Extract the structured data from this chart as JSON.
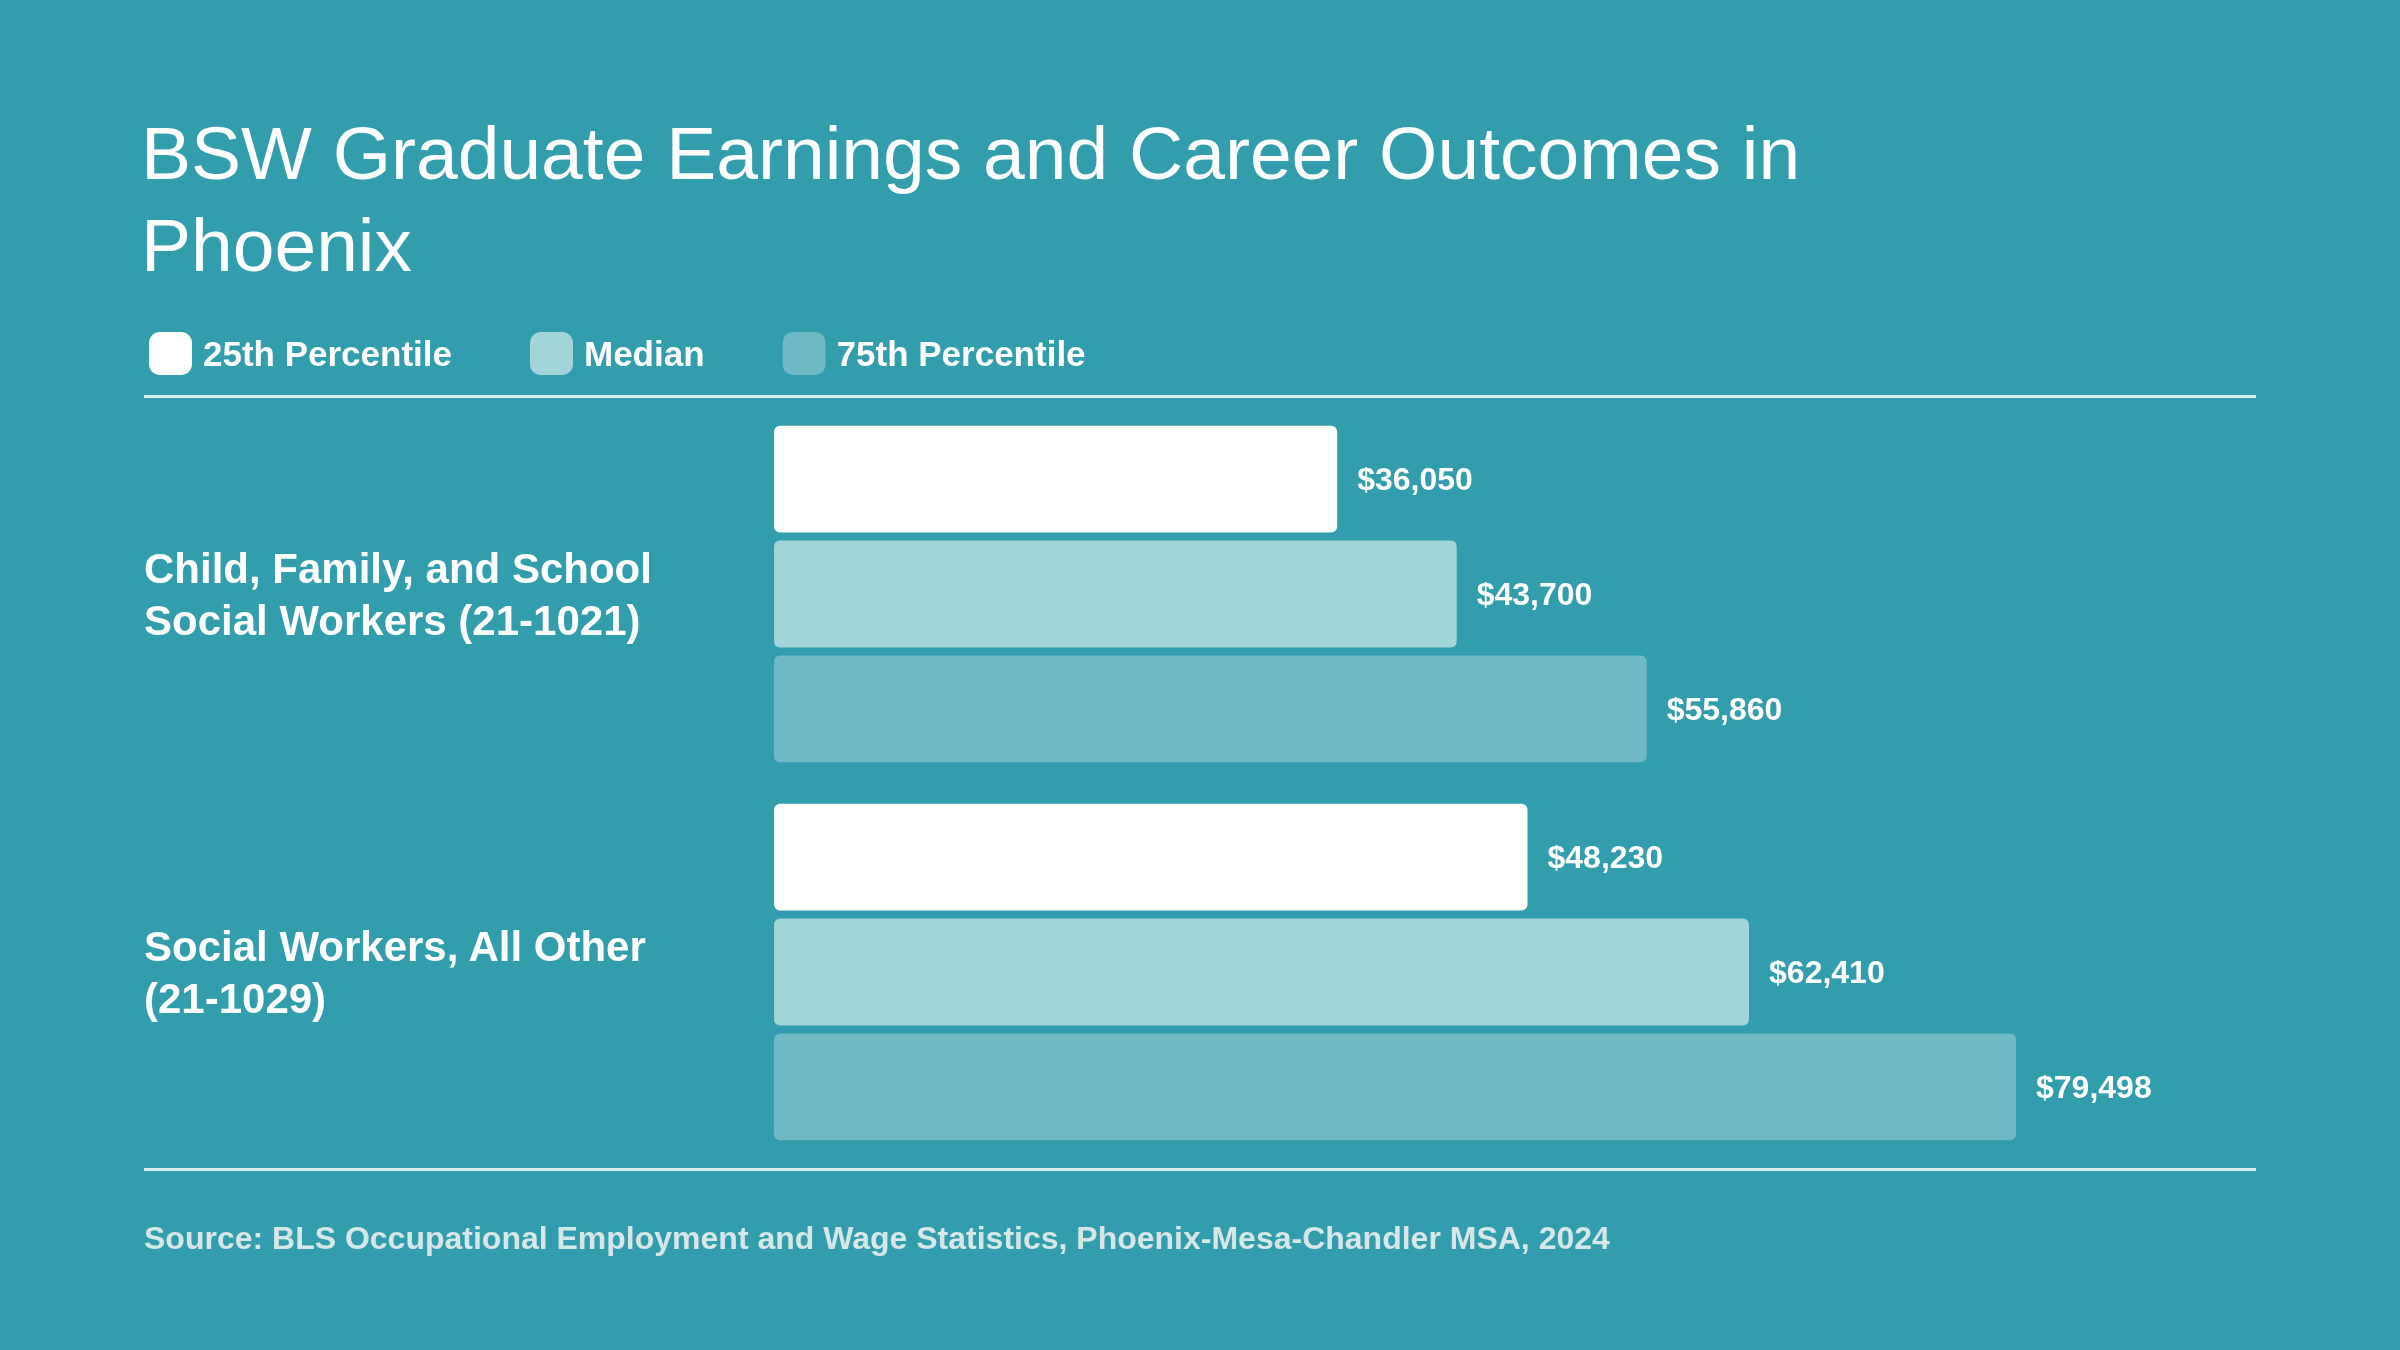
{
  "chart_data": {
    "type": "bar",
    "orientation": "horizontal",
    "title": "BSW Graduate Earnings and Career Outcomes in Phoenix",
    "categories": [
      "Child, Family, and School Social Workers (21-1021)",
      "Social Workers, All Other (21-1029)"
    ],
    "series": [
      {
        "name": "25th Percentile",
        "color": "#ffffff",
        "values": [
          36050,
          48230
        ],
        "value_labels": [
          "$36,050",
          "$48,230"
        ]
      },
      {
        "name": "Median",
        "color": "#a3d4da",
        "values": [
          43700,
          62410
        ],
        "value_labels": [
          "$43,700",
          "$62,410"
        ]
      },
      {
        "name": "75th Percentile",
        "color": "#6fb9c5",
        "values": [
          55860,
          79498
        ],
        "value_labels": [
          "$55,860",
          "$79,498"
        ]
      }
    ],
    "legend": "top left",
    "annotations": [
      "Source: BLS Occupational Employment and Wage Statistics, Phoenix-Mesa-Chandler MSA, 2024"
    ]
  }
}
